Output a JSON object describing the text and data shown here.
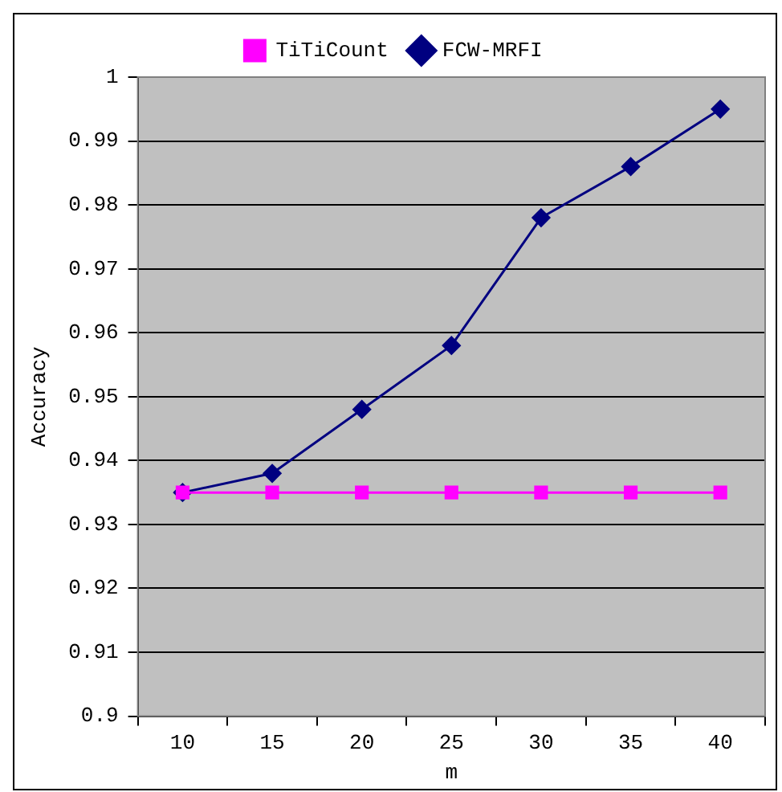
{
  "chart_data": {
    "type": "line",
    "xlabel": "m",
    "ylabel": "Accuracy",
    "categories": [
      "10",
      "15",
      "20",
      "25",
      "30",
      "35",
      "40"
    ],
    "series": [
      {
        "name": "FCW-MRFI",
        "color": "#000080",
        "marker": "diamond",
        "values": [
          0.935,
          0.938,
          0.948,
          0.958,
          0.978,
          0.986,
          0.995
        ]
      },
      {
        "name": "TiTiCount",
        "color": "#ff00ff",
        "marker": "square",
        "values": [
          0.935,
          0.935,
          0.935,
          0.935,
          0.935,
          0.935,
          0.935
        ]
      }
    ],
    "ylim": [
      0.9,
      1
    ],
    "yticks": [
      0.9,
      0.91,
      0.92,
      0.93,
      0.94,
      0.95,
      0.96,
      0.97,
      0.98,
      0.99,
      1
    ],
    "grid": "y",
    "legend": "top"
  }
}
